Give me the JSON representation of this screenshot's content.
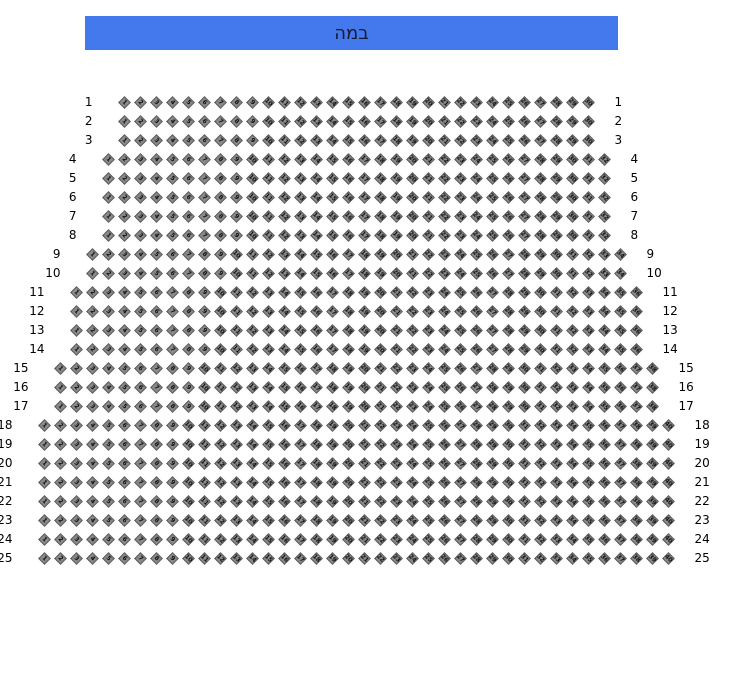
{
  "stage": {
    "label": "במה",
    "color": "#4479ee"
  },
  "seat_color": "#8a8a8a",
  "rows": [
    {
      "label": "1",
      "seats": 30
    },
    {
      "label": "2",
      "seats": 30
    },
    {
      "label": "3",
      "seats": 30
    },
    {
      "label": "4",
      "seats": 32
    },
    {
      "label": "5",
      "seats": 32
    },
    {
      "label": "6",
      "seats": 32
    },
    {
      "label": "7",
      "seats": 32
    },
    {
      "label": "8",
      "seats": 32
    },
    {
      "label": "9",
      "seats": 34
    },
    {
      "label": "10",
      "seats": 34
    },
    {
      "label": "11",
      "seats": 36
    },
    {
      "label": "12",
      "seats": 36
    },
    {
      "label": "13",
      "seats": 36
    },
    {
      "label": "14",
      "seats": 36
    },
    {
      "label": "15",
      "seats": 38
    },
    {
      "label": "16",
      "seats": 38
    },
    {
      "label": "17",
      "seats": 38
    },
    {
      "label": "18",
      "seats": 40
    },
    {
      "label": "19",
      "seats": 40
    },
    {
      "label": "20",
      "seats": 40
    },
    {
      "label": "21",
      "seats": 40
    },
    {
      "label": "22",
      "seats": 40
    },
    {
      "label": "23",
      "seats": 40
    },
    {
      "label": "24",
      "seats": 40
    },
    {
      "label": "25",
      "seats": 40
    }
  ]
}
